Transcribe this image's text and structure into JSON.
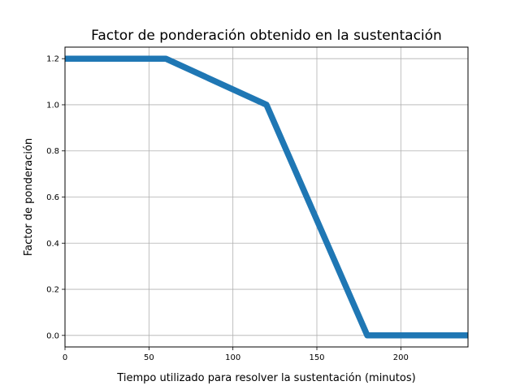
{
  "chart_data": {
    "type": "line",
    "title": "Factor de ponderación obtenido en la sustentación",
    "xlabel": "Tiempo utilizado para resolver la sustentación (minutos)",
    "ylabel": "Factor de ponderación",
    "xlim": [
      0,
      240
    ],
    "ylim": [
      -0.05,
      1.25
    ],
    "xticks": [
      0,
      50,
      100,
      150,
      200
    ],
    "yticks": [
      0.0,
      0.2,
      0.4,
      0.6,
      0.8,
      1.0,
      1.2
    ],
    "xtick_labels": [
      "0",
      "50",
      "100",
      "150",
      "200"
    ],
    "ytick_labels": [
      "0.0",
      "0.2",
      "0.4",
      "0.6",
      "0.8",
      "1.0",
      "1.2"
    ],
    "grid": true,
    "series": [
      {
        "color": "#1f77b4",
        "x": [
          0,
          60,
          120,
          180,
          240
        ],
        "y": [
          1.2,
          1.2,
          1.0,
          0.0,
          0.0
        ]
      }
    ]
  }
}
